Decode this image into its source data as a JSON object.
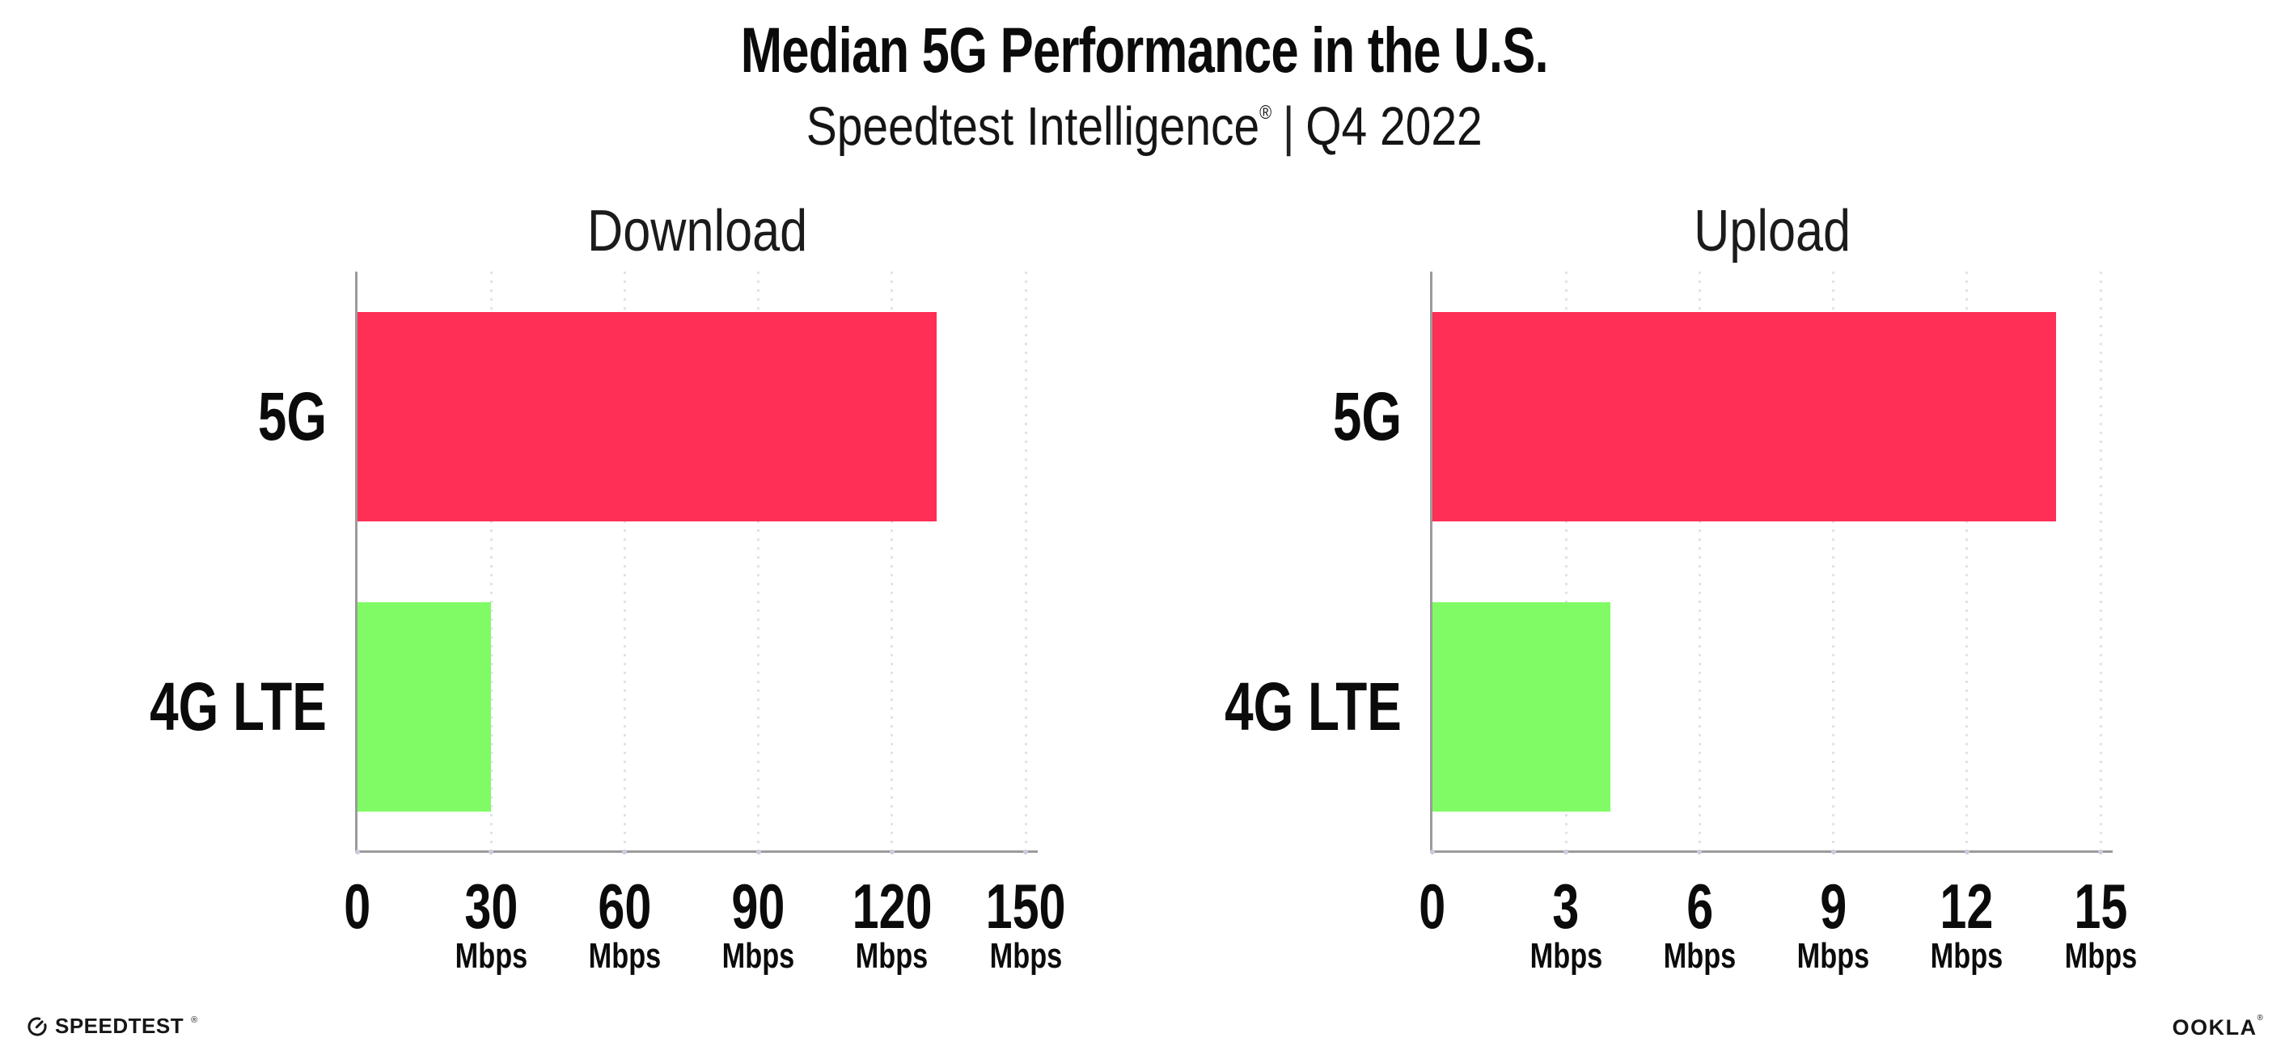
{
  "header": {
    "title": "Median 5G Performance in the U.S.",
    "subtitle": {
      "brand": "Speedtest Intelligence",
      "registered": "®",
      "divider": "|",
      "period": "Q4 2022"
    }
  },
  "style": {
    "bar_color_5g": "#ff2f56",
    "bar_color_4g": "#80fb66",
    "axis_color": "#9b9b9b",
    "grid_dot_color": "#e1e2ec",
    "background": "#ffffff"
  },
  "chart_data": [
    {
      "type": "bar",
      "orientation": "horizontal",
      "title": "Download",
      "categories": [
        "5G",
        "4G LTE"
      ],
      "values": [
        130,
        30
      ],
      "value_unit": "Mbps",
      "xticks": [
        0,
        30,
        60,
        90,
        120,
        150
      ],
      "xtick_unit_suffix": "Mbps",
      "xlim": [
        0,
        152.5
      ],
      "grid": "dotted-vertical-at-ticks",
      "legend": "none",
      "series_colors": [
        "#ff2f56",
        "#80fb66"
      ]
    },
    {
      "type": "bar",
      "orientation": "horizontal",
      "title": "Upload",
      "categories": [
        "5G",
        "4G LTE"
      ],
      "values": [
        14,
        4
      ],
      "value_unit": "Mbps",
      "xticks": [
        0,
        3,
        6,
        9,
        12,
        15
      ],
      "xtick_unit_suffix": "Mbps",
      "xlim": [
        0,
        15.25
      ],
      "grid": "dotted-vertical-at-ticks",
      "legend": "none",
      "series_colors": [
        "#ff2f56",
        "#80fb66"
      ]
    }
  ],
  "footer": {
    "speedtest_wordmark": "SPEEDTEST",
    "speedtest_registered": "®",
    "ookla_wordmark": "OOKLA",
    "ookla_registered": "®"
  }
}
